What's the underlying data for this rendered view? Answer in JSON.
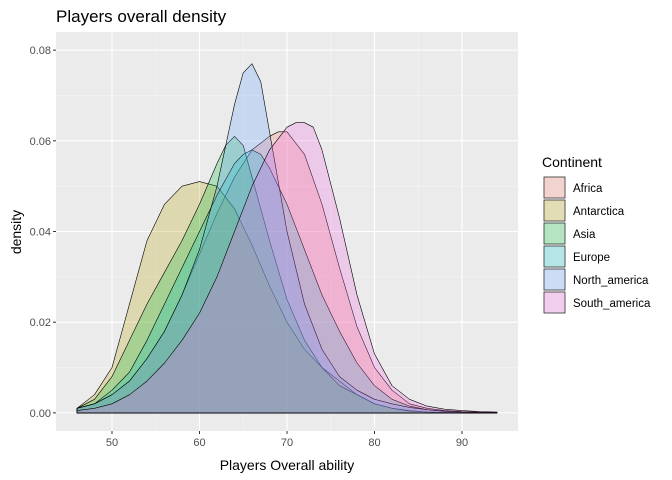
{
  "chart_data": {
    "type": "area",
    "title": "Players overall density",
    "xlabel": "Players Overall ability",
    "ylabel": "density",
    "xlim": [
      43.6,
      96.4
    ],
    "ylim": [
      -0.004,
      0.084
    ],
    "x_ticks": [
      50,
      60,
      70,
      80,
      90
    ],
    "y_ticks": [
      0.0,
      0.02,
      0.04,
      0.06,
      0.08
    ],
    "y_tick_labels": [
      "0.00",
      "0.02",
      "0.04",
      "0.06",
      "0.08"
    ],
    "grid": true,
    "legend": {
      "title": "Continent",
      "position": "right"
    },
    "fill_opacity": 0.25,
    "series": [
      {
        "name": "Africa",
        "color": "#F8766D",
        "points": [
          [
            46,
            0.001
          ],
          [
            48,
            0.002
          ],
          [
            50,
            0.004
          ],
          [
            52,
            0.007
          ],
          [
            54,
            0.012
          ],
          [
            56,
            0.018
          ],
          [
            58,
            0.026
          ],
          [
            60,
            0.035
          ],
          [
            62,
            0.044
          ],
          [
            64,
            0.052
          ],
          [
            66,
            0.058
          ],
          [
            68,
            0.061
          ],
          [
            69,
            0.062
          ],
          [
            70,
            0.062
          ],
          [
            72,
            0.057
          ],
          [
            74,
            0.046
          ],
          [
            76,
            0.032
          ],
          [
            78,
            0.019
          ],
          [
            80,
            0.01
          ],
          [
            82,
            0.005
          ],
          [
            84,
            0.002
          ],
          [
            86,
            0.001
          ],
          [
            88,
            0.0005
          ],
          [
            90,
            0.0003
          ],
          [
            92,
            0.0002
          ],
          [
            94,
            0.0001
          ]
        ]
      },
      {
        "name": "Antarctica",
        "color": "#B79F00",
        "points": [
          [
            46,
            0.001
          ],
          [
            48,
            0.004
          ],
          [
            50,
            0.01
          ],
          [
            52,
            0.024
          ],
          [
            54,
            0.038
          ],
          [
            56,
            0.046
          ],
          [
            58,
            0.05
          ],
          [
            60,
            0.051
          ],
          [
            62,
            0.05
          ],
          [
            64,
            0.045
          ],
          [
            66,
            0.037
          ],
          [
            68,
            0.028
          ],
          [
            70,
            0.02
          ],
          [
            72,
            0.014
          ],
          [
            74,
            0.01
          ],
          [
            76,
            0.007
          ],
          [
            78,
            0.004
          ],
          [
            80,
            0.002
          ],
          [
            82,
            0.001
          ],
          [
            84,
            0.0005
          ],
          [
            86,
            0.0002
          ],
          [
            88,
            0.0001
          ],
          [
            90,
            5e-05
          ],
          [
            92,
            3e-05
          ],
          [
            94,
            2e-05
          ]
        ]
      },
      {
        "name": "Asia",
        "color": "#00BA38",
        "points": [
          [
            46,
            0.001
          ],
          [
            48,
            0.003
          ],
          [
            50,
            0.008
          ],
          [
            52,
            0.016
          ],
          [
            54,
            0.024
          ],
          [
            56,
            0.031
          ],
          [
            58,
            0.038
          ],
          [
            60,
            0.046
          ],
          [
            62,
            0.055
          ],
          [
            63,
            0.059
          ],
          [
            64,
            0.061
          ],
          [
            65,
            0.059
          ],
          [
            66,
            0.052
          ],
          [
            68,
            0.038
          ],
          [
            70,
            0.025
          ],
          [
            72,
            0.016
          ],
          [
            74,
            0.01
          ],
          [
            76,
            0.006
          ],
          [
            78,
            0.004
          ],
          [
            80,
            0.002
          ],
          [
            82,
            0.001
          ],
          [
            84,
            0.0004
          ],
          [
            86,
            0.0002
          ],
          [
            88,
            0.0001
          ],
          [
            90,
            5e-05
          ],
          [
            92,
            3e-05
          ],
          [
            94,
            2e-05
          ]
        ]
      },
      {
        "name": "Europe",
        "color": "#00BFC4",
        "points": [
          [
            46,
            0.001
          ],
          [
            48,
            0.002
          ],
          [
            50,
            0.005
          ],
          [
            52,
            0.009
          ],
          [
            54,
            0.016
          ],
          [
            56,
            0.024
          ],
          [
            58,
            0.032
          ],
          [
            60,
            0.04
          ],
          [
            62,
            0.048
          ],
          [
            64,
            0.055
          ],
          [
            65,
            0.057
          ],
          [
            66,
            0.058
          ],
          [
            67,
            0.057
          ],
          [
            68,
            0.054
          ],
          [
            70,
            0.046
          ],
          [
            72,
            0.036
          ],
          [
            74,
            0.026
          ],
          [
            76,
            0.018
          ],
          [
            78,
            0.011
          ],
          [
            80,
            0.006
          ],
          [
            82,
            0.003
          ],
          [
            84,
            0.0015
          ],
          [
            86,
            0.0007
          ],
          [
            88,
            0.0003
          ],
          [
            90,
            0.0002
          ],
          [
            92,
            0.0001
          ],
          [
            94,
            5e-05
          ]
        ]
      },
      {
        "name": "North_america",
        "color": "#619CFF",
        "points": [
          [
            46,
            0.001
          ],
          [
            48,
            0.002
          ],
          [
            50,
            0.004
          ],
          [
            52,
            0.007
          ],
          [
            54,
            0.012
          ],
          [
            56,
            0.018
          ],
          [
            58,
            0.026
          ],
          [
            60,
            0.036
          ],
          [
            62,
            0.05
          ],
          [
            64,
            0.068
          ],
          [
            65,
            0.075
          ],
          [
            66,
            0.077
          ],
          [
            67,
            0.073
          ],
          [
            68,
            0.062
          ],
          [
            70,
            0.04
          ],
          [
            72,
            0.024
          ],
          [
            74,
            0.014
          ],
          [
            76,
            0.008
          ],
          [
            78,
            0.005
          ],
          [
            80,
            0.003
          ],
          [
            82,
            0.002
          ],
          [
            84,
            0.0012
          ],
          [
            86,
            0.0007
          ],
          [
            88,
            0.0004
          ],
          [
            90,
            0.0002
          ],
          [
            92,
            0.0001
          ],
          [
            94,
            5e-05
          ]
        ]
      },
      {
        "name": "South_america",
        "color": "#F564E3",
        "points": [
          [
            46,
            0.0005
          ],
          [
            48,
            0.001
          ],
          [
            50,
            0.002
          ],
          [
            52,
            0.004
          ],
          [
            54,
            0.007
          ],
          [
            56,
            0.011
          ],
          [
            58,
            0.016
          ],
          [
            60,
            0.022
          ],
          [
            62,
            0.03
          ],
          [
            64,
            0.04
          ],
          [
            66,
            0.05
          ],
          [
            68,
            0.058
          ],
          [
            70,
            0.063
          ],
          [
            71,
            0.064
          ],
          [
            72,
            0.064
          ],
          [
            73,
            0.063
          ],
          [
            74,
            0.058
          ],
          [
            76,
            0.043
          ],
          [
            78,
            0.026
          ],
          [
            80,
            0.013
          ],
          [
            82,
            0.006
          ],
          [
            84,
            0.003
          ],
          [
            86,
            0.0015
          ],
          [
            88,
            0.0008
          ],
          [
            90,
            0.0005
          ],
          [
            92,
            0.0003
          ],
          [
            94,
            0.0002
          ]
        ]
      }
    ]
  }
}
